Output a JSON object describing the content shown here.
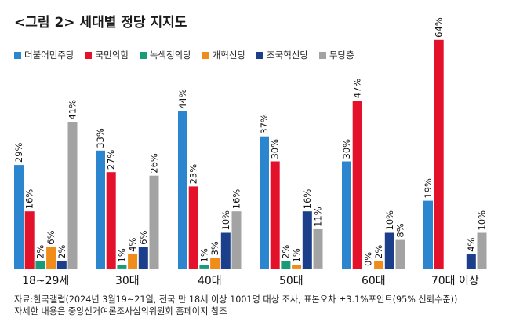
{
  "title": "<그림 2> 세대별 정당 지지도",
  "chart_data": {
    "type": "bar",
    "title": "<그림 2> 세대별 정당 지지도",
    "categories": [
      "18~29세",
      "30대",
      "40대",
      "50대",
      "60대",
      "70대 이상"
    ],
    "ylim": [
      0,
      64
    ],
    "grid": false,
    "legend": "top-left",
    "series": [
      {
        "name": "더불어민주당",
        "color": "#2b86cf",
        "values": [
          29,
          33,
          44,
          37,
          30,
          19
        ],
        "labels": [
          "29%",
          "33%",
          "44%",
          "37%",
          "30%",
          "19%"
        ]
      },
      {
        "name": "국민의힘",
        "color": "#e3122a",
        "values": [
          16,
          27,
          23,
          30,
          47,
          64
        ],
        "labels": [
          "16%",
          "27%",
          "23%",
          "30%",
          "47%",
          "64%"
        ]
      },
      {
        "name": "녹색정의당",
        "color": "#1a9b77",
        "values": [
          2,
          1,
          1,
          2,
          0,
          null
        ],
        "labels": [
          "2%",
          "1%",
          "1%",
          "2%",
          "0%",
          ""
        ]
      },
      {
        "name": "개혁신당",
        "color": "#f08c1a",
        "values": [
          6,
          4,
          3,
          1,
          2,
          null
        ],
        "labels": [
          "6%",
          "4%",
          "3%",
          "1%",
          "2%",
          ""
        ]
      },
      {
        "name": "조국혁신당",
        "color": "#1c3f8c",
        "values": [
          2,
          6,
          10,
          16,
          10,
          4
        ],
        "labels": [
          "2%",
          "6%",
          "10%",
          "16%",
          "10%",
          "4%"
        ]
      },
      {
        "name": "무당층",
        "color": "#a3a3a3",
        "values": [
          41,
          26,
          16,
          11,
          8,
          10
        ],
        "labels": [
          "41%",
          "26%",
          "16%",
          "11%",
          "8%",
          "10%"
        ]
      }
    ]
  },
  "source": {
    "line1": "자료:한국갤럽(2024년 3월19~21일, 전국 만 18세 이상 1001명 대상 조사, 표본오차 ±3.1%포인트(95% 신뢰수준))",
    "line2": "자세한 내용은 중앙선거여론조사심의위원회 홈페이지 참조"
  }
}
